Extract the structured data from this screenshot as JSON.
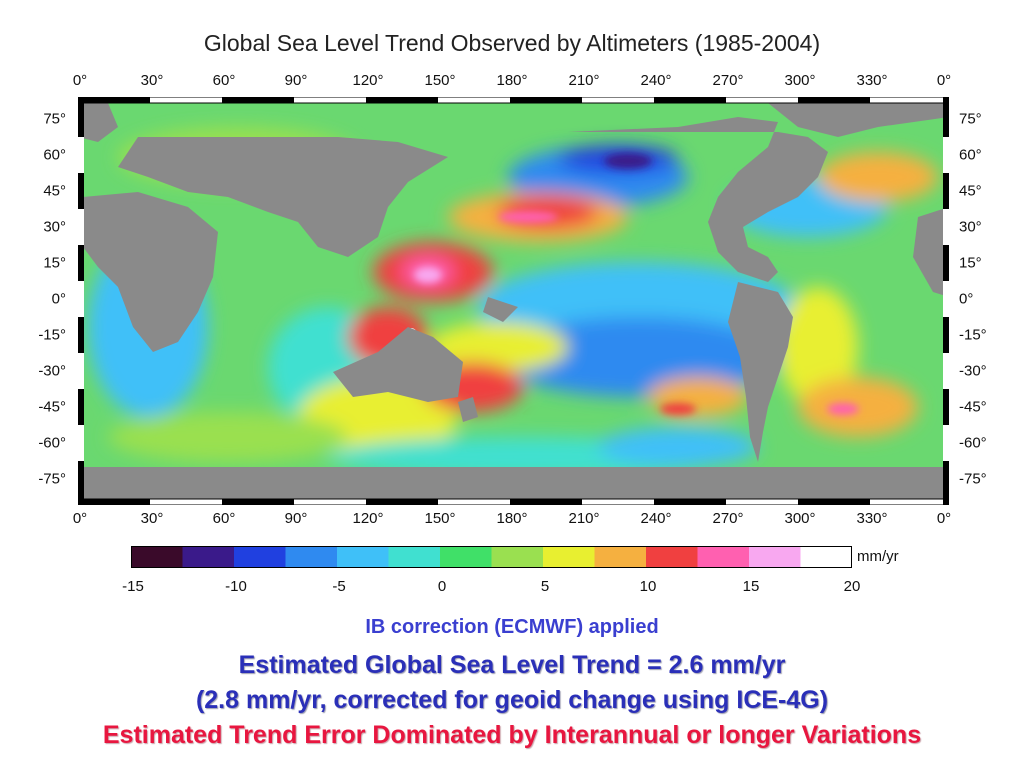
{
  "title": "Global Sea Level Trend Observed by Altimeters (1985-2004)",
  "lon_labels": [
    "0°",
    "30°",
    "60°",
    "90°",
    "120°",
    "150°",
    "180°",
    "210°",
    "240°",
    "270°",
    "300°",
    "330°",
    "0°"
  ],
  "lat_labels": [
    "75°",
    "60°",
    "45°",
    "30°",
    "15°",
    "0°",
    "-15°",
    "-30°",
    "-45°",
    "-60°",
    "-75°"
  ],
  "colorbar": {
    "unit": "mm/yr",
    "min": -15,
    "max": 20,
    "tick_labels": [
      "-15",
      "-10",
      "-5",
      "0",
      "5",
      "10",
      "15",
      "20"
    ],
    "colors": [
      "#3a0a2a",
      "#3a1a8a",
      "#2040e0",
      "#2f8af0",
      "#3fc0f8",
      "#40e0d0",
      "#40e068",
      "#9ae050",
      "#e8ef30",
      "#f5b040",
      "#f04040",
      "#ff60b0",
      "#f8a8f0",
      "#ffffff"
    ]
  },
  "map_colors": {
    "land": "#8a8a8a",
    "frame_black": "#000000",
    "frame_white": "#ffffff"
  },
  "notes": {
    "ib_correction": "IB correction (ECMWF) applied",
    "trend_line": "Estimated Global Sea Level Trend = 2.6 mm/yr",
    "geoid_line": "(2.8 mm/yr, corrected for geoid change using ICE-4G)",
    "error_line": "Estimated Trend Error Dominated by Interannual or longer Variations"
  }
}
